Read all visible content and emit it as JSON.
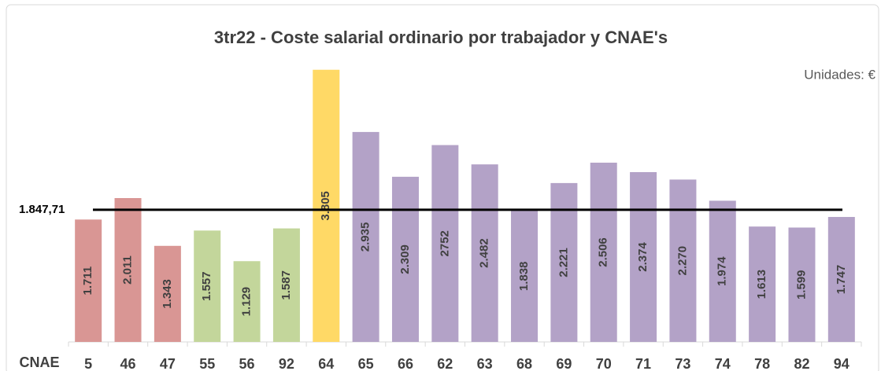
{
  "chart_data": {
    "type": "bar",
    "title": "3tr22 - Coste salarial ordinario por trabajador y CNAE's",
    "annotation": "Unidades: €",
    "x_label": "CNAE",
    "categories": [
      "5",
      "46",
      "47",
      "55",
      "56",
      "92",
      "64",
      "65",
      "66",
      "62",
      "63",
      "68",
      "69",
      "70",
      "71",
      "73",
      "74",
      "78",
      "82",
      "94"
    ],
    "values": [
      1711,
      2011,
      1343,
      1557,
      1129,
      1587,
      3805,
      2935,
      2309,
      2752,
      2482,
      1838,
      2221,
      2506,
      2374,
      2270,
      1974,
      1613,
      1599,
      1747
    ],
    "value_labels": [
      "1.711",
      "2.011",
      "1.343",
      "1.557",
      "1.129",
      "1.587",
      "3.805",
      "2.935",
      "2.309",
      "2752",
      "2.482",
      "1.838",
      "2.221",
      "2.506",
      "2.374",
      "2.270",
      "1.974",
      "1.613",
      "1.599",
      "1.747"
    ],
    "colors": [
      "#d99694",
      "#d99694",
      "#d99694",
      "#c3d69b",
      "#c3d69b",
      "#c3d69b",
      "#ffd966",
      "#b3a2c7",
      "#b3a2c7",
      "#b3a2c7",
      "#b3a2c7",
      "#b3a2c7",
      "#b3a2c7",
      "#b3a2c7",
      "#b3a2c7",
      "#b3a2c7",
      "#b3a2c7",
      "#b3a2c7",
      "#b3a2c7",
      "#b3a2c7"
    ],
    "reference_line": {
      "value": 1847.71,
      "label": "1.847,71",
      "color": "#000000"
    },
    "ylim": [
      0,
      4000
    ]
  }
}
